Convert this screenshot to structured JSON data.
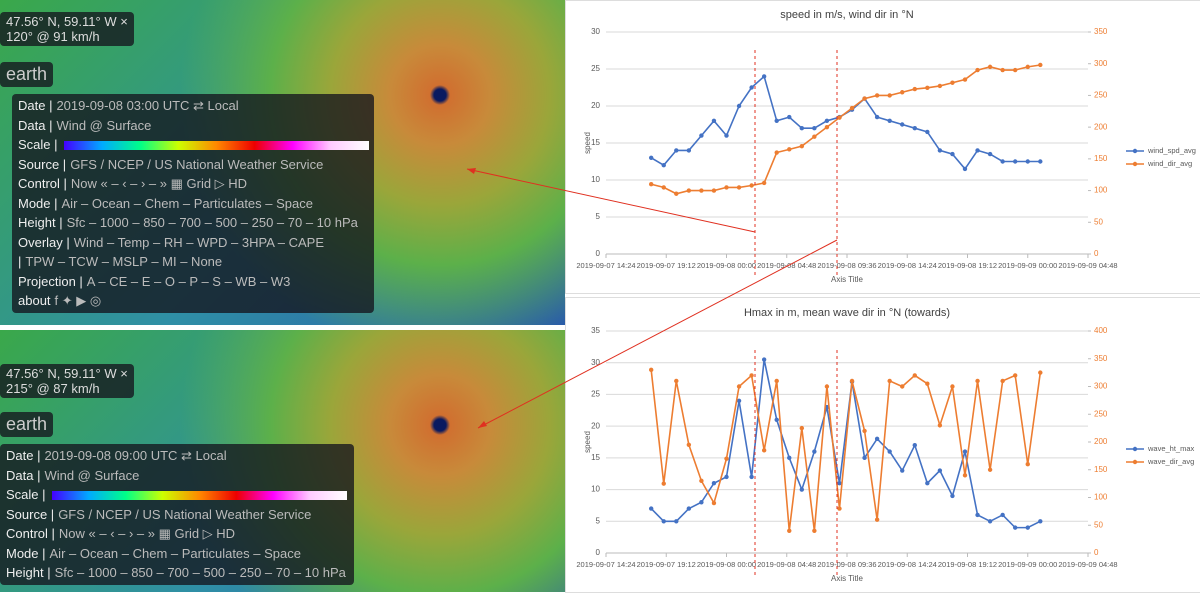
{
  "panels": [
    {
      "location": "47.56° N, 59.11° W ×",
      "reading": "120° @ 91 km/h",
      "brand": "earth",
      "menu": [
        {
          "label": "Date |",
          "value": "2019-09-08 03:00 UTC ⇄ Local"
        },
        {
          "label": "Data |",
          "value": "Wind @ Surface"
        },
        {
          "label": "Scale |",
          "value": ""
        },
        {
          "label": "Source |",
          "value": "GFS / NCEP / US National Weather Service"
        },
        {
          "label": "Control |",
          "value": "Now « – ‹ – › – » ▦ Grid ▷ HD"
        },
        {
          "label": "Mode |",
          "value": "Air – Ocean – Chem – Particulates – Space"
        },
        {
          "label": "Height |",
          "value": "Sfc – 1000 – 850 – 700 – 500 – 250 – 70 – 10 hPa"
        },
        {
          "label": "Overlay |",
          "value": "Wind – Temp – RH – WPD – 3HPA – CAPE"
        },
        {
          "label": "|",
          "value": "TPW – TCW – MSLP – MI – None"
        },
        {
          "label": "Projection |",
          "value": "A – CE – E – O – P – S – WB – W3"
        },
        {
          "label": "about",
          "value": "f ✦ ▶ ◎"
        }
      ]
    },
    {
      "location": "47.56° N, 59.11° W ×",
      "reading": "215° @ 87 km/h",
      "brand": "earth",
      "menu": [
        {
          "label": "Date |",
          "value": "2019-09-08 09:00 UTC ⇄ Local"
        },
        {
          "label": "Data |",
          "value": "Wind @ Surface"
        },
        {
          "label": "Scale |",
          "value": ""
        },
        {
          "label": "Source |",
          "value": "GFS / NCEP / US National Weather Service"
        },
        {
          "label": "Control |",
          "value": "Now « – ‹ – › – » ▦ Grid ▷ HD"
        },
        {
          "label": "Mode |",
          "value": "Air – Ocean – Chem – Particulates – Space"
        },
        {
          "label": "Height |",
          "value": "Sfc – 1000 – 850 – 700 – 500 – 250 – 70 – 10 hPa"
        }
      ]
    }
  ],
  "chart_data": [
    {
      "type": "line",
      "title": "speed in m/s, wind dir in °N",
      "ylabel": "speed",
      "xlabel": "Axis Title",
      "x": [
        "2019-09-07 18:00",
        "2019-09-07 19:00",
        "2019-09-07 20:00",
        "2019-09-07 21:00",
        "2019-09-07 22:00",
        "2019-09-07 23:00",
        "2019-09-08 00:00",
        "2019-09-08 01:00",
        "2019-09-08 02:00",
        "2019-09-08 03:00",
        "2019-09-08 04:00",
        "2019-09-08 05:00",
        "2019-09-08 06:00",
        "2019-09-08 07:00",
        "2019-09-08 08:00",
        "2019-09-08 09:00",
        "2019-09-08 10:00",
        "2019-09-08 11:00",
        "2019-09-08 12:00",
        "2019-09-08 13:00",
        "2019-09-08 14:00",
        "2019-09-08 15:00",
        "2019-09-08 16:00",
        "2019-09-08 17:00",
        "2019-09-08 18:00",
        "2019-09-08 19:00",
        "2019-09-08 20:00",
        "2019-09-08 21:00",
        "2019-09-08 22:00",
        "2019-09-08 23:00",
        "2019-09-09 00:00",
        "2019-09-09 01:00"
      ],
      "xlim": [
        "2019-09-07 14:24",
        "2019-09-09 04:48"
      ],
      "xticks": [
        "2019-09-07 14:24",
        "2019-09-07 19:12",
        "2019-09-08 00:00",
        "2019-09-08 04:48",
        "2019-09-08 09:36",
        "2019-09-08 14:24",
        "2019-09-08 19:12",
        "2019-09-09 00:00",
        "2019-09-09 04:48"
      ],
      "ylim": [
        0,
        30
      ],
      "yticks": [
        0,
        5,
        10,
        15,
        20,
        25,
        30
      ],
      "y2lim": [
        0,
        350
      ],
      "y2ticks": [
        0,
        50,
        100,
        150,
        200,
        250,
        300,
        350
      ],
      "grid": true,
      "series": [
        {
          "name": "wind_spd_avg",
          "color": "#4472c4",
          "values": [
            13,
            12,
            14,
            14,
            16,
            18,
            16,
            20,
            22.5,
            24,
            18,
            18.5,
            17,
            17,
            18,
            18.5,
            19.5,
            21,
            18.5,
            18,
            17.5,
            17,
            16.5,
            14,
            13.5,
            11.5,
            14,
            13.5,
            12.5,
            12.5,
            12.5,
            12.5
          ]
        },
        {
          "name": "wind_dir_avg",
          "color": "#ed7d31",
          "axis": "y2",
          "values": [
            110,
            105,
            95,
            100,
            100,
            100,
            105,
            105,
            108,
            112,
            160,
            165,
            170,
            185,
            200,
            215,
            230,
            245,
            250,
            250,
            255,
            260,
            262,
            265,
            270,
            275,
            290,
            295,
            290,
            290,
            295,
            298
          ]
        }
      ]
    },
    {
      "type": "line",
      "title": "Hmax in m, mean wave dir in °N (towards)",
      "ylabel": "speed",
      "xlabel": "Axis Title",
      "x": [
        "2019-09-07 18:00",
        "2019-09-07 19:00",
        "2019-09-07 20:00",
        "2019-09-07 21:00",
        "2019-09-07 22:00",
        "2019-09-07 23:00",
        "2019-09-08 00:00",
        "2019-09-08 01:00",
        "2019-09-08 02:00",
        "2019-09-08 03:00",
        "2019-09-08 04:00",
        "2019-09-08 05:00",
        "2019-09-08 06:00",
        "2019-09-08 07:00",
        "2019-09-08 08:00",
        "2019-09-08 09:00",
        "2019-09-08 10:00",
        "2019-09-08 11:00",
        "2019-09-08 12:00",
        "2019-09-08 13:00",
        "2019-09-08 14:00",
        "2019-09-08 15:00",
        "2019-09-08 16:00",
        "2019-09-08 17:00",
        "2019-09-08 18:00",
        "2019-09-08 19:00",
        "2019-09-08 20:00",
        "2019-09-08 21:00",
        "2019-09-08 22:00",
        "2019-09-08 23:00",
        "2019-09-09 00:00",
        "2019-09-09 01:00"
      ],
      "xlim": [
        "2019-09-07 14:24",
        "2019-09-09 04:48"
      ],
      "xticks": [
        "2019-09-07 14:24",
        "2019-09-07 19:12",
        "2019-09-08 00:00",
        "2019-09-08 04:48",
        "2019-09-08 09:36",
        "2019-09-08 14:24",
        "2019-09-08 19:12",
        "2019-09-09 00:00",
        "2019-09-09 04:48"
      ],
      "ylim": [
        0,
        35
      ],
      "yticks": [
        0,
        5,
        10,
        15,
        20,
        25,
        30,
        35
      ],
      "y2lim": [
        0,
        400
      ],
      "y2ticks": [
        0,
        50,
        100,
        150,
        200,
        250,
        300,
        350,
        400
      ],
      "grid": true,
      "series": [
        {
          "name": "wave_ht_max",
          "color": "#4472c4",
          "values": [
            7,
            5,
            5,
            7,
            8,
            11,
            12,
            24,
            12,
            30.5,
            21,
            15,
            10,
            16,
            23,
            11,
            27,
            15,
            18,
            16,
            13,
            17,
            11,
            13,
            9,
            16,
            6,
            5,
            6,
            4,
            4,
            5
          ]
        },
        {
          "name": "wave_dir_avg",
          "color": "#ed7d31",
          "axis": "y2",
          "values": [
            330,
            125,
            310,
            195,
            130,
            90,
            170,
            300,
            320,
            185,
            310,
            40,
            225,
            40,
            300,
            80,
            310,
            220,
            60,
            310,
            300,
            320,
            305,
            230,
            300,
            140,
            310,
            150,
            310,
            320,
            160,
            325
          ]
        }
      ]
    }
  ]
}
